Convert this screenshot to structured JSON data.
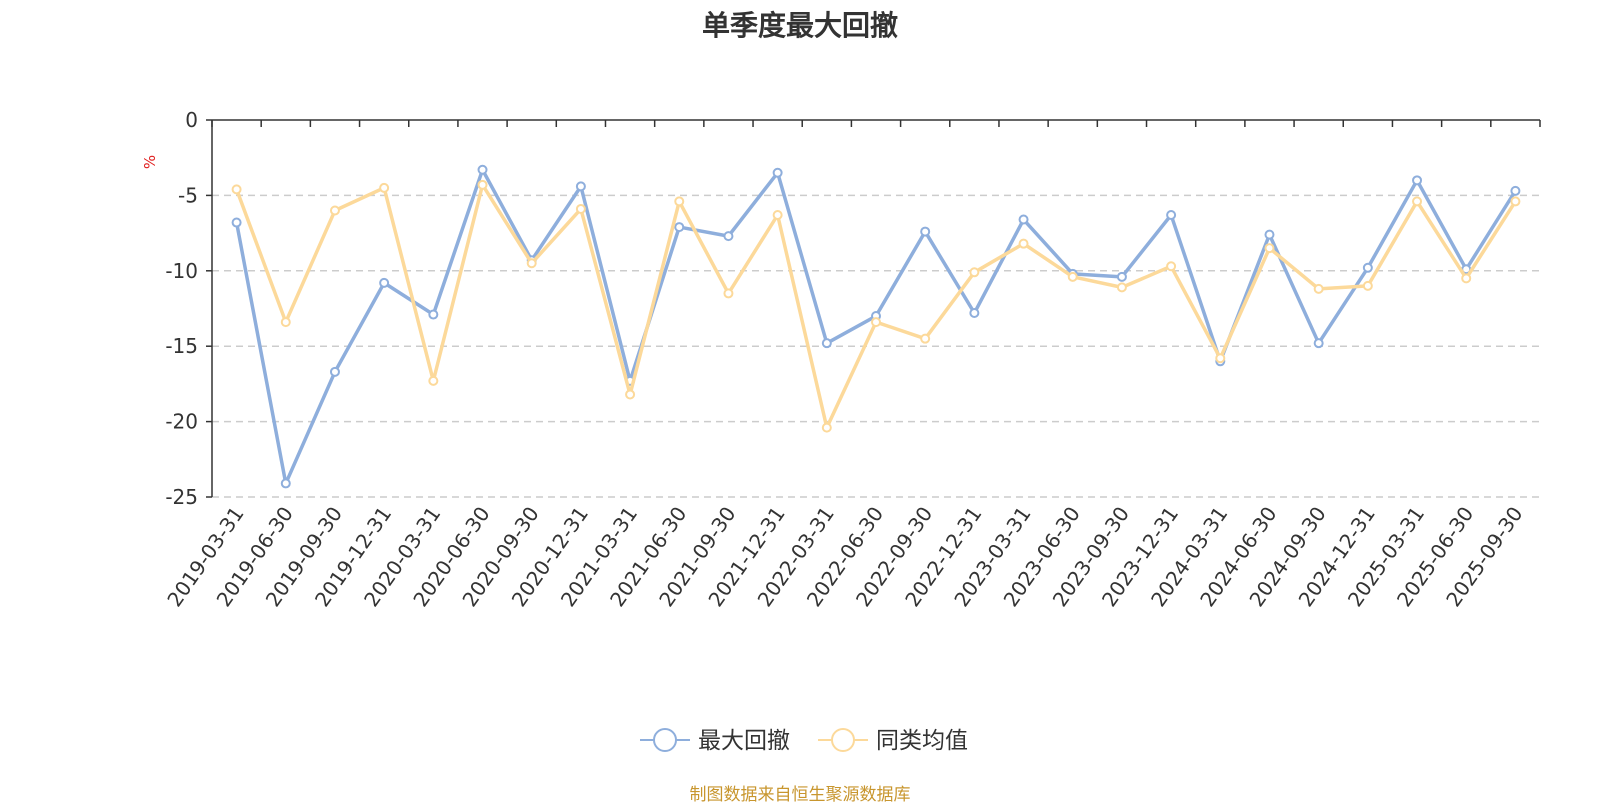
{
  "chart_data": {
    "type": "line",
    "title": "单季度最大回撤",
    "ylabel": "%",
    "xlabel": "",
    "ylim": [
      -25,
      0
    ],
    "yticks": [
      0,
      -5,
      -10,
      -15,
      -20,
      -25
    ],
    "ytick_labels": [
      "0",
      "-5",
      "-10",
      "-15",
      "-20",
      "-25"
    ],
    "grid": true,
    "legend_position": "bottom-center",
    "categories": [
      "2019-03-31",
      "2019-06-30",
      "2019-09-30",
      "2019-12-31",
      "2020-03-31",
      "2020-06-30",
      "2020-09-30",
      "2020-12-31",
      "2021-03-31",
      "2021-06-30",
      "2021-09-30",
      "2021-12-31",
      "2022-03-31",
      "2022-06-30",
      "2022-09-30",
      "2022-12-31",
      "2023-03-31",
      "2023-06-30",
      "2023-09-30",
      "2023-12-31",
      "2024-03-31",
      "2024-06-30",
      "2024-09-30",
      "2024-12-31",
      "2025-03-31",
      "2025-06-30",
      "2025-09-30"
    ],
    "series": [
      {
        "name": "最大回撤",
        "color": "#8eaedc",
        "values": [
          -6.8,
          -24.1,
          -16.7,
          -10.8,
          -12.9,
          -3.3,
          -9.3,
          -4.4,
          -17.3,
          -7.1,
          -7.7,
          -3.5,
          -14.8,
          -13.0,
          -7.4,
          -12.8,
          -6.6,
          -10.2,
          -10.4,
          -6.3,
          -16.0,
          -7.6,
          -14.8,
          -9.8,
          -4.0,
          -9.9,
          -4.7
        ]
      },
      {
        "name": "同类均值",
        "color": "#fcd99a",
        "values": [
          -4.6,
          -13.4,
          -6.0,
          -4.5,
          -17.3,
          -4.3,
          -9.5,
          -5.9,
          -18.2,
          -5.4,
          -11.5,
          -6.3,
          -20.4,
          -13.4,
          -14.5,
          -10.1,
          -8.2,
          -10.4,
          -11.1,
          -9.7,
          -15.8,
          -8.5,
          -11.2,
          -11.0,
          -5.4,
          -10.5,
          -5.4
        ]
      }
    ]
  },
  "footer": "制图数据来自恒生聚源数据库",
  "ylabel_color": "#e02020",
  "footer_color": "#c8962e"
}
